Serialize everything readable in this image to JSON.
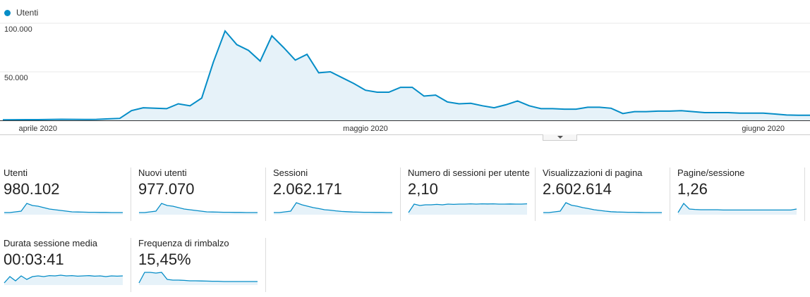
{
  "legend": {
    "label": "Utenti",
    "color": "#058dc7"
  },
  "chart_data": {
    "type": "area",
    "series": [
      {
        "name": "Utenti",
        "values": [
          600,
          650,
          700,
          750,
          900,
          1100,
          1000,
          900,
          1000,
          1500,
          2000,
          10000,
          13000,
          12500,
          12000,
          17000,
          15000,
          23000,
          60000,
          92000,
          78000,
          72000,
          61000,
          87000,
          75000,
          62000,
          68000,
          49000,
          50000,
          44000,
          38000,
          31000,
          29000,
          29000,
          34000,
          34000,
          25000,
          26000,
          19000,
          17000,
          17500,
          15000,
          13000,
          16000,
          20000,
          15000,
          12000,
          12000,
          11500,
          11500,
          13500,
          13500,
          12500,
          7000,
          9000,
          9000,
          9500,
          9500,
          10000,
          9000,
          8000,
          8000,
          8000,
          7500,
          7500,
          7500,
          6500,
          5500,
          5200,
          5200
        ]
      }
    ],
    "x_labels": [
      "aprile 2020",
      "maggio 2020",
      "giugno 2020"
    ],
    "x_label_index": [
      3,
      31,
      65
    ],
    "y_ticks": [
      "100.000",
      "50.000"
    ],
    "y_tick_values": [
      100000,
      50000
    ],
    "ylim": [
      0,
      100000
    ],
    "grid": true,
    "legend_position": "top-left"
  },
  "scorecards": [
    {
      "label": "Utenti",
      "value": "980.102",
      "spark": [
        0.1,
        0.1,
        0.15,
        0.2,
        0.75,
        0.6,
        0.55,
        0.45,
        0.35,
        0.3,
        0.25,
        0.2,
        0.15,
        0.14,
        0.13,
        0.12,
        0.12,
        0.11,
        0.11,
        0.1,
        0.1,
        0.1
      ]
    },
    {
      "label": "Nuovi utenti",
      "value": "977.070",
      "spark": [
        0.1,
        0.1,
        0.15,
        0.2,
        0.75,
        0.6,
        0.55,
        0.45,
        0.35,
        0.3,
        0.25,
        0.2,
        0.15,
        0.14,
        0.13,
        0.12,
        0.12,
        0.11,
        0.11,
        0.1,
        0.1,
        0.1
      ]
    },
    {
      "label": "Sessioni",
      "value": "2.062.171",
      "spark": [
        0.1,
        0.1,
        0.15,
        0.2,
        0.8,
        0.65,
        0.55,
        0.45,
        0.38,
        0.3,
        0.27,
        0.22,
        0.18,
        0.16,
        0.14,
        0.13,
        0.12,
        0.12,
        0.11,
        0.11,
        0.1,
        0.1
      ]
    },
    {
      "label": "Numero di sessioni per utente",
      "value": "2,10",
      "spark": [
        0.1,
        0.7,
        0.6,
        0.65,
        0.65,
        0.68,
        0.65,
        0.7,
        0.68,
        0.7,
        0.7,
        0.72,
        0.7,
        0.72,
        0.71,
        0.72,
        0.7,
        0.7,
        0.71,
        0.7,
        0.7,
        0.72
      ]
    },
    {
      "label": "Visualizzazioni di pagina",
      "value": "2.602.614",
      "spark": [
        0.1,
        0.1,
        0.15,
        0.2,
        0.8,
        0.62,
        0.55,
        0.45,
        0.38,
        0.3,
        0.25,
        0.2,
        0.16,
        0.14,
        0.13,
        0.12,
        0.12,
        0.11,
        0.1,
        0.1,
        0.1,
        0.1
      ]
    },
    {
      "label": "Pagine/sessione",
      "value": "1,26",
      "spark": [
        0.1,
        0.75,
        0.35,
        0.32,
        0.3,
        0.3,
        0.3,
        0.3,
        0.28,
        0.28,
        0.28,
        0.28,
        0.28,
        0.28,
        0.28,
        0.28,
        0.28,
        0.28,
        0.28,
        0.28,
        0.28,
        0.35
      ]
    },
    {
      "label": "Durata sessione media",
      "value": "00:03:41",
      "spark": [
        0.1,
        0.55,
        0.25,
        0.6,
        0.35,
        0.55,
        0.6,
        0.55,
        0.62,
        0.6,
        0.65,
        0.6,
        0.62,
        0.58,
        0.6,
        0.62,
        0.58,
        0.6,
        0.55,
        0.6,
        0.58,
        0.6
      ]
    },
    {
      "label": "Frequenza di rimbalzo",
      "value": "15,45%",
      "spark": [
        0.1,
        0.85,
        0.85,
        0.8,
        0.85,
        0.35,
        0.3,
        0.3,
        0.28,
        0.25,
        0.25,
        0.24,
        0.23,
        0.22,
        0.22,
        0.2,
        0.2,
        0.2,
        0.2,
        0.2,
        0.2,
        0.2
      ]
    }
  ]
}
